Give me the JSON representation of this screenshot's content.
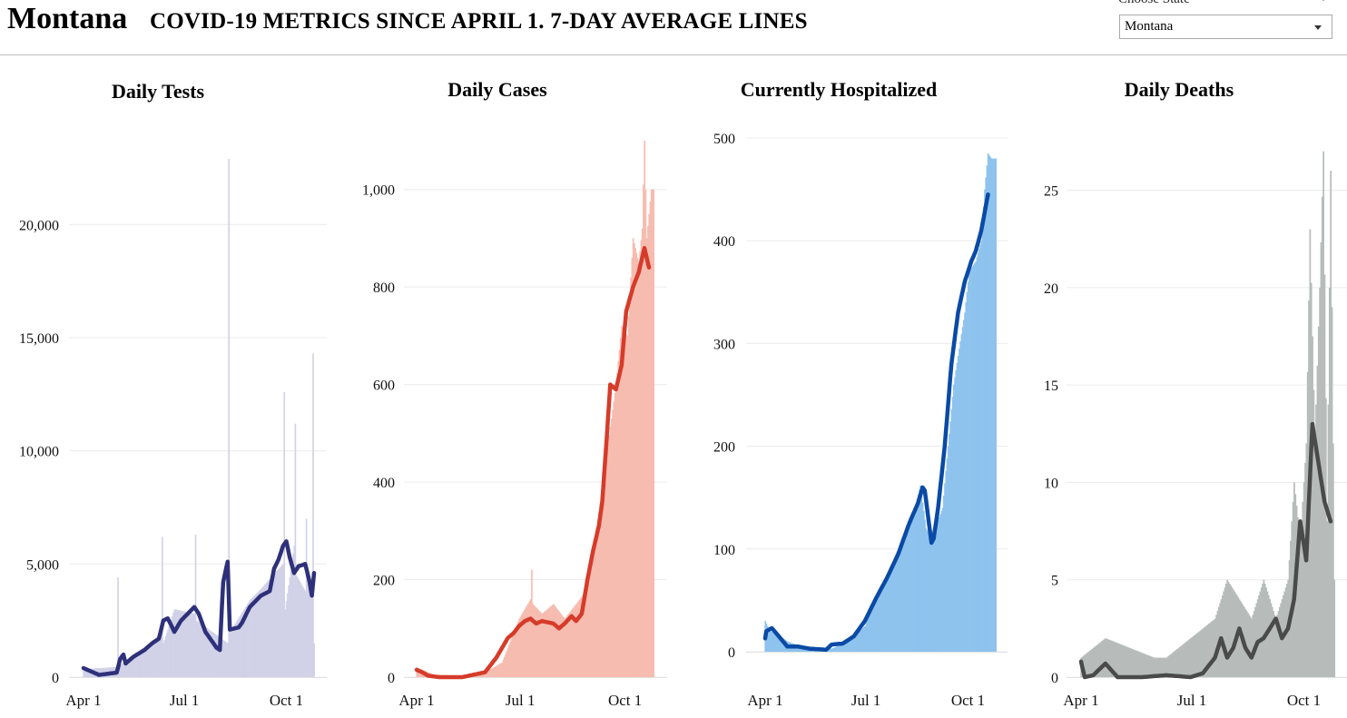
{
  "header": {
    "state": "Montana",
    "headline": "COVID-19 METRICS SINCE APRIL 1. 7-DAY AVERAGE LINES",
    "choose_label": "Choose State",
    "selected_state": "Montana"
  },
  "chart_data": [
    {
      "type": "bar",
      "title": "Daily Tests",
      "xlabel": "",
      "ylabel": "",
      "x_ticks": [
        "Apr 1",
        "Jul 1",
        "Oct 1"
      ],
      "y_ticks": [
        0,
        5000,
        10000,
        15000,
        20000
      ],
      "y_tick_labels": [
        "0",
        "5,000",
        "10,000",
        "15,000",
        "20,000"
      ],
      "ylim": [
        0,
        23500
      ],
      "grid": true,
      "bar_color": "#d1d1e8",
      "line_color": "#2e3179",
      "bars_keypoints": [
        [
          0,
          350
        ],
        [
          30,
          450
        ],
        [
          31,
          4400
        ],
        [
          32,
          500
        ],
        [
          60,
          1500
        ],
        [
          70,
          1800
        ],
        [
          71,
          6200
        ],
        [
          72,
          1500
        ],
        [
          82,
          3000
        ],
        [
          100,
          2800
        ],
        [
          101,
          6300
        ],
        [
          102,
          2500
        ],
        [
          130,
          1500
        ],
        [
          131,
          22900
        ],
        [
          132,
          2000
        ],
        [
          150,
          3400
        ],
        [
          160,
          3900
        ],
        [
          180,
          5000
        ],
        [
          181,
          12600
        ],
        [
          182,
          3000
        ],
        [
          190,
          5800
        ],
        [
          191,
          11200
        ],
        [
          192,
          4500
        ],
        [
          200,
          3800
        ],
        [
          201,
          7000
        ],
        [
          202,
          4200
        ],
        [
          206,
          4000
        ],
        [
          207,
          14300
        ],
        [
          208,
          1500
        ]
      ],
      "avg_keypoints": [
        [
          0,
          400
        ],
        [
          14,
          100
        ],
        [
          30,
          200
        ],
        [
          33,
          800
        ],
        [
          36,
          1000
        ],
        [
          38,
          600
        ],
        [
          45,
          900
        ],
        [
          55,
          1200
        ],
        [
          62,
          1500
        ],
        [
          68,
          1700
        ],
        [
          72,
          2500
        ],
        [
          76,
          2600
        ],
        [
          82,
          2000
        ],
        [
          88,
          2500
        ],
        [
          100,
          3100
        ],
        [
          104,
          2800
        ],
        [
          110,
          2000
        ],
        [
          120,
          1300
        ],
        [
          123,
          1200
        ],
        [
          126,
          4200
        ],
        [
          130,
          5100
        ],
        [
          132,
          2100
        ],
        [
          140,
          2200
        ],
        [
          143,
          2400
        ],
        [
          150,
          3100
        ],
        [
          160,
          3600
        ],
        [
          168,
          3800
        ],
        [
          172,
          4800
        ],
        [
          176,
          5200
        ],
        [
          180,
          5800
        ],
        [
          183,
          6000
        ],
        [
          186,
          5300
        ],
        [
          190,
          4600
        ],
        [
          194,
          4900
        ],
        [
          200,
          5000
        ],
        [
          204,
          4200
        ],
        [
          206,
          3600
        ],
        [
          208,
          4600
        ]
      ],
      "x_range": [
        0,
        208
      ],
      "x_tick_days": [
        0,
        91,
        183
      ]
    },
    {
      "type": "bar",
      "title": "Daily Cases",
      "xlabel": "",
      "ylabel": "",
      "x_ticks": [
        "Apr 1",
        "Jul 1",
        "Oct 1"
      ],
      "y_ticks": [
        0,
        200,
        400,
        600,
        800,
        1000
      ],
      "y_tick_labels": [
        "0",
        "200",
        "400",
        "600",
        "800",
        "1,000"
      ],
      "ylim": [
        0,
        1100
      ],
      "grid": true,
      "bar_color": "#f7bcb0",
      "line_color": "#d63b2a",
      "bars_keypoints": [
        [
          0,
          20
        ],
        [
          15,
          5
        ],
        [
          40,
          3
        ],
        [
          60,
          10
        ],
        [
          75,
          30
        ],
        [
          90,
          120
        ],
        [
          100,
          160
        ],
        [
          101,
          220
        ],
        [
          102,
          150
        ],
        [
          110,
          130
        ],
        [
          120,
          150
        ],
        [
          130,
          120
        ],
        [
          150,
          180
        ],
        [
          160,
          340
        ],
        [
          175,
          600
        ],
        [
          180,
          720
        ],
        [
          185,
          700
        ],
        [
          190,
          900
        ],
        [
          195,
          850
        ],
        [
          198,
          920
        ],
        [
          200,
          1100
        ],
        [
          202,
          900
        ],
        [
          206,
          1000
        ]
      ],
      "avg_keypoints": [
        [
          0,
          15
        ],
        [
          5,
          10
        ],
        [
          10,
          3
        ],
        [
          20,
          0
        ],
        [
          40,
          0
        ],
        [
          50,
          5
        ],
        [
          60,
          10
        ],
        [
          70,
          40
        ],
        [
          80,
          80
        ],
        [
          85,
          90
        ],
        [
          90,
          105
        ],
        [
          95,
          115
        ],
        [
          100,
          120
        ],
        [
          105,
          110
        ],
        [
          110,
          115
        ],
        [
          120,
          110
        ],
        [
          125,
          100
        ],
        [
          130,
          110
        ],
        [
          136,
          125
        ],
        [
          140,
          115
        ],
        [
          145,
          130
        ],
        [
          150,
          200
        ],
        [
          155,
          260
        ],
        [
          160,
          310
        ],
        [
          163,
          360
        ],
        [
          166,
          460
        ],
        [
          170,
          600
        ],
        [
          175,
          590
        ],
        [
          180,
          640
        ],
        [
          184,
          750
        ],
        [
          190,
          800
        ],
        [
          195,
          830
        ],
        [
          200,
          880
        ],
        [
          204,
          840
        ]
      ],
      "x_range": [
        0,
        208
      ],
      "x_tick_days": [
        0,
        91,
        183
      ]
    },
    {
      "type": "area",
      "title": "Currently Hospitalized",
      "xlabel": "",
      "ylabel": "",
      "x_ticks": [
        "Apr 1",
        "Jul 1",
        "Oct 1"
      ],
      "y_ticks": [
        0,
        100,
        200,
        300,
        400,
        500
      ],
      "y_tick_labels": [
        "0",
        "100",
        "200",
        "300",
        "400",
        "500"
      ],
      "ylim": [
        0,
        500
      ],
      "grid": true,
      "bar_color": "#8ec3ee",
      "line_color": "#0a4aa6",
      "bars_keypoints": [
        [
          0,
          30
        ],
        [
          4,
          20
        ],
        [
          10,
          18
        ],
        [
          20,
          10
        ],
        [
          30,
          6
        ],
        [
          50,
          4
        ],
        [
          60,
          3
        ],
        [
          70,
          8
        ],
        [
          80,
          15
        ],
        [
          90,
          25
        ],
        [
          100,
          55
        ],
        [
          110,
          75
        ],
        [
          120,
          100
        ],
        [
          130,
          130
        ],
        [
          135,
          140
        ],
        [
          140,
          162
        ],
        [
          145,
          120
        ],
        [
          150,
          110
        ],
        [
          160,
          140
        ],
        [
          170,
          260
        ],
        [
          180,
          330
        ],
        [
          184,
          370
        ],
        [
          190,
          380
        ],
        [
          195,
          400
        ],
        [
          198,
          450
        ],
        [
          201,
          485
        ],
        [
          204,
          480
        ]
      ],
      "avg_keypoints": [
        [
          0,
          13
        ],
        [
          1,
          20
        ],
        [
          6,
          23
        ],
        [
          10,
          18
        ],
        [
          20,
          5
        ],
        [
          30,
          5
        ],
        [
          40,
          3
        ],
        [
          55,
          2
        ],
        [
          60,
          7
        ],
        [
          70,
          8
        ],
        [
          80,
          15
        ],
        [
          90,
          30
        ],
        [
          100,
          52
        ],
        [
          110,
          72
        ],
        [
          120,
          95
        ],
        [
          130,
          125
        ],
        [
          138,
          145
        ],
        [
          142,
          160
        ],
        [
          144,
          157
        ],
        [
          146,
          140
        ],
        [
          150,
          106
        ],
        [
          152,
          110
        ],
        [
          156,
          140
        ],
        [
          162,
          200
        ],
        [
          168,
          280
        ],
        [
          174,
          330
        ],
        [
          180,
          360
        ],
        [
          186,
          380
        ],
        [
          190,
          390
        ],
        [
          195,
          410
        ],
        [
          201,
          445
        ]
      ],
      "x_range": [
        0,
        208
      ],
      "x_tick_days": [
        0,
        91,
        183
      ]
    },
    {
      "type": "bar",
      "title": "Daily Deaths",
      "xlabel": "",
      "ylabel": "",
      "x_ticks": [
        "Apr 1",
        "Jul 1",
        "Oct 1"
      ],
      "y_ticks": [
        0,
        5,
        10,
        15,
        20,
        25
      ],
      "y_tick_labels": [
        "0",
        "5",
        "10",
        "15",
        "20",
        "25"
      ],
      "ylim": [
        0,
        27.5
      ],
      "grid": true,
      "bar_color": "#b7bcba",
      "line_color": "#4a4a4a",
      "bars_keypoints": [
        [
          0,
          1
        ],
        [
          20,
          2
        ],
        [
          60,
          1
        ],
        [
          70,
          1
        ],
        [
          110,
          3
        ],
        [
          120,
          5
        ],
        [
          130,
          4
        ],
        [
          140,
          3
        ],
        [
          150,
          5
        ],
        [
          160,
          3
        ],
        [
          170,
          5
        ],
        [
          175,
          10
        ],
        [
          180,
          7
        ],
        [
          185,
          12
        ],
        [
          188,
          23
        ],
        [
          192,
          12
        ],
        [
          196,
          20
        ],
        [
          199,
          27
        ],
        [
          202,
          8
        ],
        [
          205,
          26
        ],
        [
          208,
          5
        ]
      ],
      "avg_keypoints": [
        [
          0,
          0.8
        ],
        [
          3,
          0
        ],
        [
          10,
          0.1
        ],
        [
          20,
          0.7
        ],
        [
          30,
          0
        ],
        [
          50,
          0
        ],
        [
          70,
          0.1
        ],
        [
          90,
          0
        ],
        [
          100,
          0.2
        ],
        [
          110,
          1
        ],
        [
          115,
          2
        ],
        [
          120,
          1
        ],
        [
          125,
          1.5
        ],
        [
          130,
          2.5
        ],
        [
          135,
          1.5
        ],
        [
          140,
          1
        ],
        [
          145,
          1.8
        ],
        [
          150,
          2
        ],
        [
          155,
          2.5
        ],
        [
          160,
          3
        ],
        [
          165,
          2
        ],
        [
          170,
          2.5
        ],
        [
          175,
          4
        ],
        [
          180,
          8
        ],
        [
          185,
          6
        ],
        [
          190,
          13
        ],
        [
          195,
          11
        ],
        [
          200,
          9
        ],
        [
          205,
          8
        ]
      ],
      "x_range": [
        0,
        208
      ],
      "x_tick_days": [
        0,
        91,
        183
      ]
    }
  ]
}
